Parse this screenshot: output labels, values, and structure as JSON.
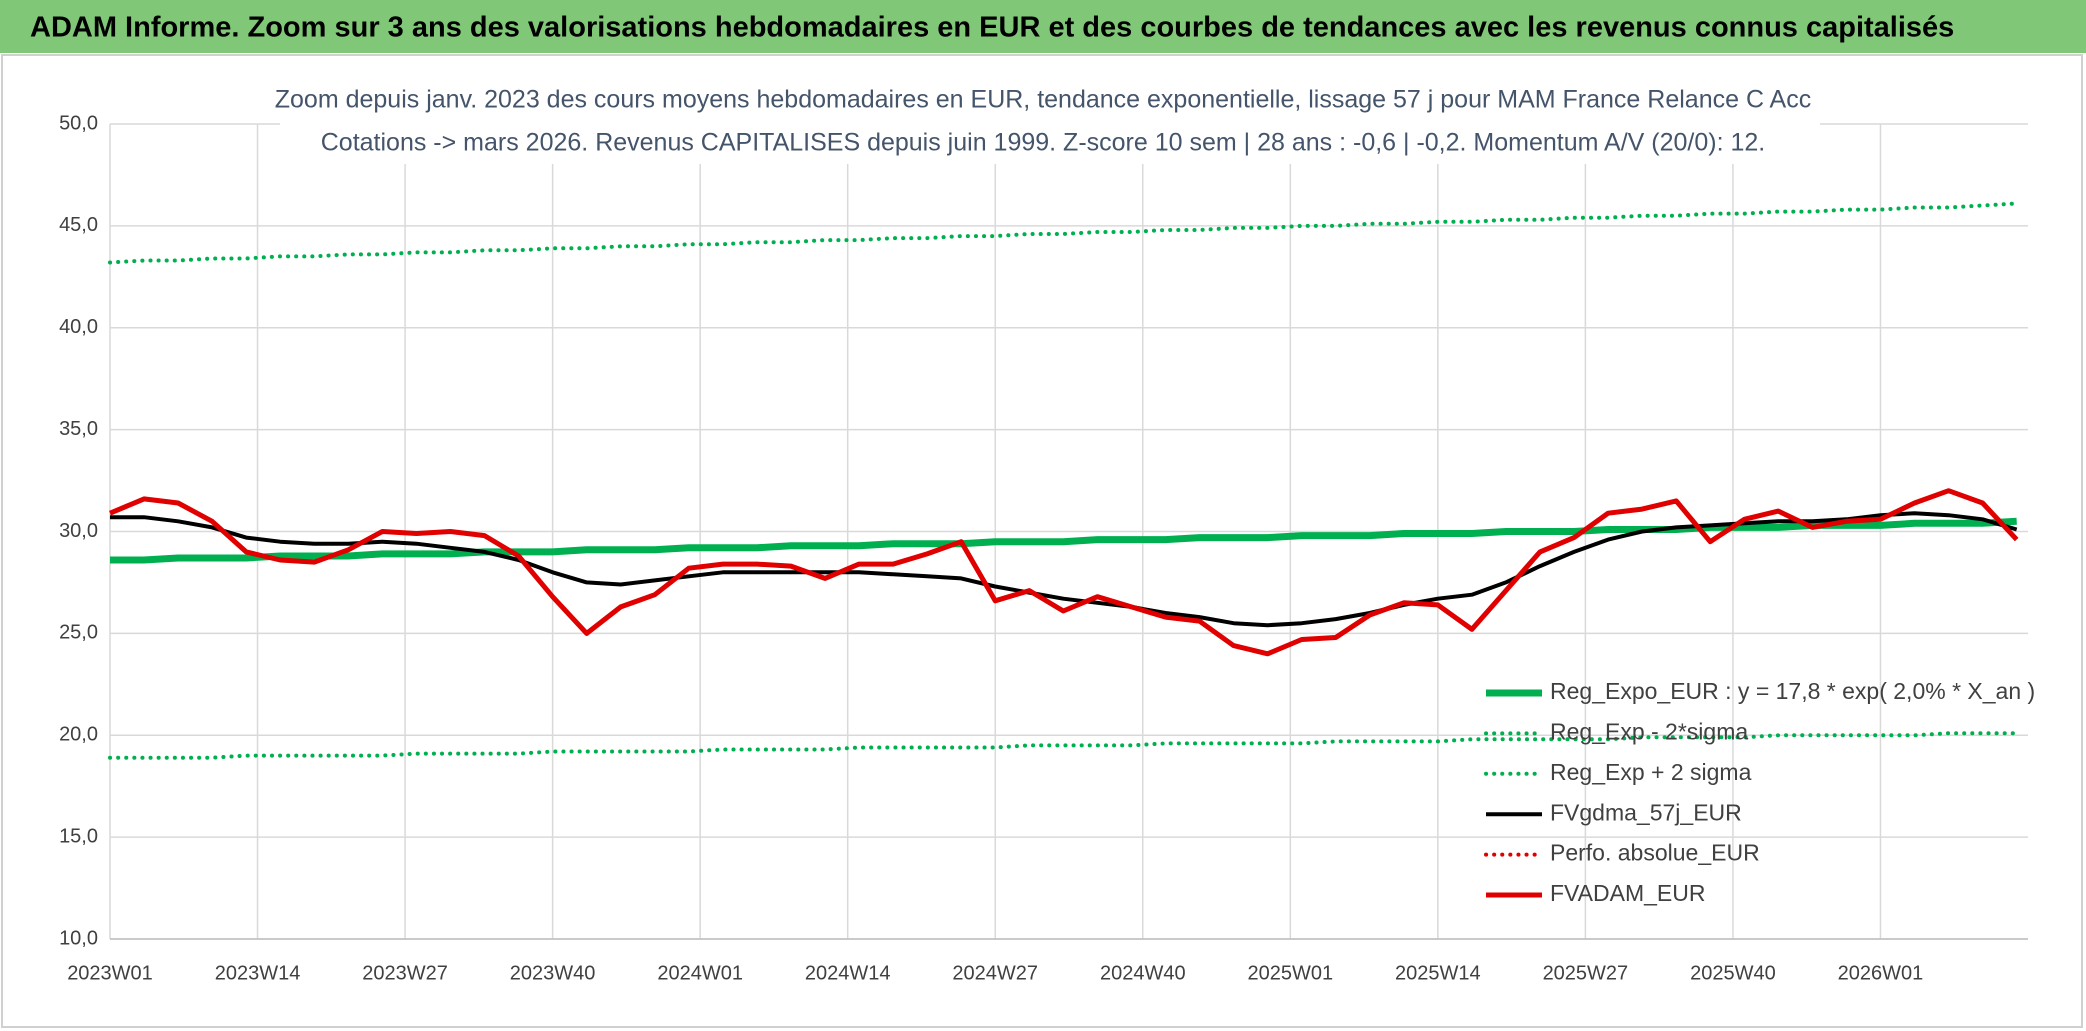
{
  "header": {
    "title": "ADAM Informe. Zoom sur 3 ans des valorisations hebdomadaires en EUR et des courbes de tendances avec les revenus connus capitalisés"
  },
  "chart_data": {
    "type": "line",
    "title": "Zoom depuis janv. 2023 des cours moyens hebdomadaires en EUR, tendance exponentielle, lissage 57 j pour MAM France Relance C Acc",
    "subtitle": "Cotations -> mars 2026. Revenus CAPITALISES depuis juin 1999. Z-score 10 sem | 28 ans : -0,6 | -0,2. Momentum A/V (20/0): 12.",
    "x": [
      0,
      3,
      6,
      9,
      12,
      15,
      18,
      21,
      24,
      27,
      30,
      33,
      36,
      39,
      42,
      45,
      48,
      51,
      54,
      57,
      60,
      63,
      66,
      69,
      72,
      75,
      78,
      81,
      84,
      87,
      90,
      93,
      96,
      99,
      102,
      105,
      108,
      111,
      114,
      117,
      120,
      123,
      126,
      129,
      132,
      135,
      138,
      141,
      144,
      147,
      150,
      153,
      156,
      159,
      162,
      165,
      168
    ],
    "xlim": [
      0,
      169
    ],
    "xticks": [
      {
        "value": 0,
        "label": "2023W01"
      },
      {
        "value": 13,
        "label": "2023W14"
      },
      {
        "value": 26,
        "label": "2023W27"
      },
      {
        "value": 39,
        "label": "2023W40"
      },
      {
        "value": 52,
        "label": "2024W01"
      },
      {
        "value": 65,
        "label": "2024W14"
      },
      {
        "value": 78,
        "label": "2024W27"
      },
      {
        "value": 91,
        "label": "2024W40"
      },
      {
        "value": 104,
        "label": "2025W01"
      },
      {
        "value": 117,
        "label": "2025W14"
      },
      {
        "value": 130,
        "label": "2025W27"
      },
      {
        "value": 143,
        "label": "2025W40"
      },
      {
        "value": 156,
        "label": "2026W01"
      }
    ],
    "ylim": [
      10,
      50
    ],
    "yticks": [
      {
        "value": 10,
        "label": "10,0"
      },
      {
        "value": 15,
        "label": "15,0"
      },
      {
        "value": 20,
        "label": "20,0"
      },
      {
        "value": 25,
        "label": "25,0"
      },
      {
        "value": 30,
        "label": "30,0"
      },
      {
        "value": 35,
        "label": "35,0"
      },
      {
        "value": 40,
        "label": "40,0"
      },
      {
        "value": 45,
        "label": "45,0"
      },
      {
        "value": 50,
        "label": "50,0"
      }
    ],
    "grid": true,
    "legend": "lower right",
    "series": [
      {
        "name": "Reg_Expo_EUR : y = 17,8 * exp( 2,0% *  X_an )",
        "color": "#00b050",
        "line_style": "solid",
        "values": [
          28.6,
          28.6,
          28.7,
          28.7,
          28.7,
          28.8,
          28.8,
          28.8,
          28.9,
          28.9,
          28.9,
          29.0,
          29.0,
          29.0,
          29.1,
          29.1,
          29.1,
          29.2,
          29.2,
          29.2,
          29.3,
          29.3,
          29.3,
          29.4,
          29.4,
          29.4,
          29.5,
          29.5,
          29.5,
          29.6,
          29.6,
          29.6,
          29.7,
          29.7,
          29.7,
          29.8,
          29.8,
          29.8,
          29.9,
          29.9,
          29.9,
          30.0,
          30.0,
          30.0,
          30.1,
          30.1,
          30.1,
          30.2,
          30.2,
          30.2,
          30.3,
          30.3,
          30.3,
          30.4,
          30.4,
          30.4,
          30.5
        ]
      },
      {
        "name": "Reg_Exp - 2*sigma",
        "color": "#00b050",
        "line_style": "dotted",
        "values": [
          18.9,
          18.9,
          18.9,
          18.9,
          19.0,
          19.0,
          19.0,
          19.0,
          19.0,
          19.1,
          19.1,
          19.1,
          19.1,
          19.2,
          19.2,
          19.2,
          19.2,
          19.2,
          19.3,
          19.3,
          19.3,
          19.3,
          19.4,
          19.4,
          19.4,
          19.4,
          19.4,
          19.5,
          19.5,
          19.5,
          19.5,
          19.6,
          19.6,
          19.6,
          19.6,
          19.6,
          19.7,
          19.7,
          19.7,
          19.7,
          19.8,
          19.8,
          19.8,
          19.8,
          19.8,
          19.9,
          19.9,
          19.9,
          19.9,
          20.0,
          20.0,
          20.0,
          20.0,
          20.0,
          20.1,
          20.1,
          20.1
        ]
      },
      {
        "name": "Reg_Exp + 2 sigma",
        "color": "#00b050",
        "line_style": "dotted",
        "values": [
          43.2,
          43.3,
          43.3,
          43.4,
          43.4,
          43.5,
          43.5,
          43.6,
          43.6,
          43.7,
          43.7,
          43.8,
          43.8,
          43.9,
          43.9,
          44.0,
          44.0,
          44.1,
          44.1,
          44.2,
          44.2,
          44.3,
          44.3,
          44.4,
          44.4,
          44.5,
          44.5,
          44.6,
          44.6,
          44.7,
          44.7,
          44.8,
          44.8,
          44.9,
          44.9,
          45.0,
          45.0,
          45.1,
          45.1,
          45.2,
          45.2,
          45.3,
          45.3,
          45.4,
          45.4,
          45.5,
          45.5,
          45.6,
          45.6,
          45.7,
          45.7,
          45.8,
          45.8,
          45.9,
          45.9,
          46.0,
          46.1
        ]
      },
      {
        "name": "FVgdma_57j_EUR",
        "color": "#000000",
        "line_style": "solid",
        "values": [
          30.7,
          30.7,
          30.5,
          30.2,
          29.7,
          29.5,
          29.4,
          29.4,
          29.5,
          29.4,
          29.2,
          29.0,
          28.6,
          28.0,
          27.5,
          27.4,
          27.6,
          27.8,
          28.0,
          28.0,
          28.0,
          28.0,
          28.0,
          27.9,
          27.8,
          27.7,
          27.3,
          27.0,
          26.7,
          26.5,
          26.3,
          26.0,
          25.8,
          25.5,
          25.4,
          25.5,
          25.7,
          26.0,
          26.4,
          26.7,
          26.9,
          27.5,
          28.3,
          29.0,
          29.6,
          30.0,
          30.2,
          30.3,
          30.4,
          30.5,
          30.5,
          30.6,
          30.8,
          30.9,
          30.8,
          30.6,
          30.1
        ]
      },
      {
        "name": "Perfo. absolue_EUR",
        "color": "#e00000",
        "line_style": "dotted",
        "values": [
          null,
          null,
          null,
          null,
          null,
          null,
          null,
          null,
          null,
          null,
          null,
          null,
          null,
          null,
          null,
          null,
          null,
          null,
          null,
          null,
          null,
          null,
          null,
          null,
          null,
          null,
          null,
          null,
          null,
          null,
          null,
          null,
          null,
          null,
          null,
          null,
          null,
          null,
          null,
          null,
          null,
          null,
          null,
          null,
          null,
          null,
          null,
          null,
          null,
          null,
          null,
          null,
          null,
          null,
          null,
          null,
          null
        ]
      },
      {
        "name": "FVADAM_EUR",
        "color": "#e00000",
        "line_style": "solid",
        "values": [
          30.9,
          31.6,
          31.4,
          30.5,
          29.0,
          28.6,
          28.5,
          29.1,
          30.0,
          29.9,
          30.0,
          29.8,
          28.8,
          26.8,
          25.0,
          26.3,
          26.9,
          28.2,
          28.4,
          28.4,
          28.3,
          27.7,
          28.4,
          28.4,
          28.9,
          29.5,
          26.6,
          27.1,
          26.1,
          26.8,
          26.3,
          25.8,
          25.6,
          24.4,
          24.0,
          24.7,
          24.8,
          25.9,
          26.5,
          26.4,
          25.2,
          27.1,
          29.0,
          29.7,
          30.9,
          31.1,
          31.5,
          29.5,
          30.6,
          31.0,
          30.2,
          30.5,
          30.6,
          31.4,
          32.0,
          31.4,
          29.6
        ]
      }
    ]
  }
}
